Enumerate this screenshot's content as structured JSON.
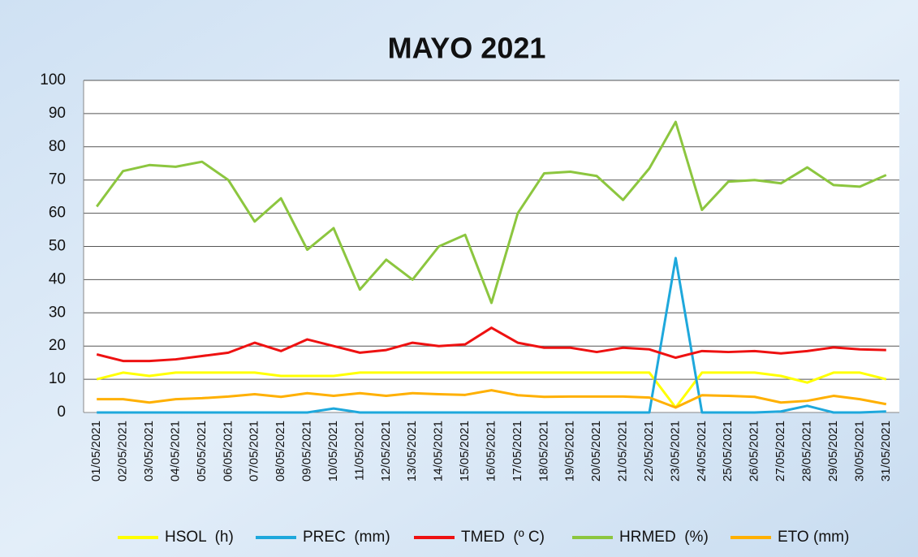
{
  "chart_data": {
    "type": "line",
    "title": "MAYO 2021",
    "categories": [
      "01/05/2021",
      "02/05/2021",
      "03/05/2021",
      "04/05/2021",
      "05/05/2021",
      "06/05/2021",
      "07/05/2021",
      "08/05/2021",
      "09/05/2021",
      "10/05/2021",
      "11/05/2021",
      "12/05/2021",
      "13/05/2021",
      "14/05/2021",
      "15/05/2021",
      "16/05/2021",
      "17/05/2021",
      "18/05/2021",
      "19/05/2021",
      "20/05/2021",
      "21/05/2021",
      "22/05/2021",
      "23/05/2021",
      "24/05/2021",
      "25/05/2021",
      "26/05/2021",
      "27/05/2021",
      "28/05/2021",
      "29/05/2021",
      "30/05/2021",
      "31/05/2021"
    ],
    "series": [
      {
        "name": "HSOL  (h)",
        "color": "#ffff00",
        "values": [
          10,
          12,
          11,
          12,
          12,
          12,
          12,
          11,
          11,
          11,
          12,
          12,
          12,
          12,
          12,
          12,
          12,
          12,
          12,
          12,
          12,
          12,
          1.5,
          12,
          12,
          12,
          11,
          9,
          12,
          12,
          10
        ]
      },
      {
        "name": "PREC  (mm)",
        "color": "#1ea8dc",
        "values": [
          0,
          0,
          0,
          0,
          0,
          0,
          0,
          0,
          0,
          1.2,
          0,
          0,
          0,
          0,
          0,
          0,
          0,
          0,
          0,
          0,
          0,
          0,
          46.5,
          0,
          0,
          0,
          0.3,
          2,
          0,
          0,
          0.3
        ]
      },
      {
        "name": "TMED  (º C)",
        "color": "#ee1111",
        "values": [
          17.5,
          15.5,
          15.5,
          16,
          17,
          18,
          21,
          18.5,
          22,
          20,
          18,
          18.8,
          21,
          20,
          20.5,
          25.5,
          21,
          19.5,
          19.5,
          18.2,
          19.5,
          19,
          16.5,
          18.5,
          18.2,
          18.5,
          17.8,
          18.5,
          19.6,
          19,
          18.8
        ]
      },
      {
        "name": "HRMED  (%)",
        "color": "#8cc63f",
        "values": [
          62,
          72.7,
          74.5,
          74,
          75.5,
          70,
          57.5,
          64.5,
          49,
          55.5,
          37,
          46,
          40,
          50,
          53.5,
          33,
          60,
          72,
          72.5,
          71.2,
          64,
          73.5,
          87.5,
          61,
          69.5,
          70,
          69,
          73.8,
          68.5,
          68,
          71.5
        ]
      },
      {
        "name": "ETO (mm)",
        "color": "#ffb000",
        "values": [
          4,
          4,
          3,
          4,
          4.3,
          4.8,
          5.5,
          4.7,
          5.8,
          5,
          5.8,
          5,
          5.8,
          5.5,
          5.3,
          6.7,
          5.2,
          4.7,
          4.8,
          4.8,
          4.8,
          4.5,
          1.5,
          5.2,
          5,
          4.7,
          3,
          3.5,
          5,
          4,
          2.5
        ]
      }
    ],
    "ylim": [
      0,
      100
    ],
    "yticks": [
      0,
      10,
      20,
      30,
      40,
      50,
      60,
      70,
      80,
      90,
      100
    ],
    "grid": true,
    "legend": "bottom"
  }
}
